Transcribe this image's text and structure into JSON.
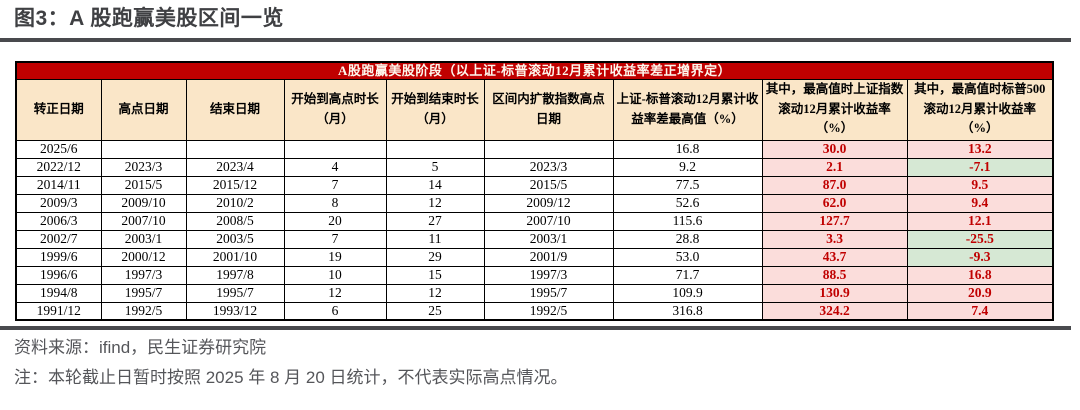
{
  "figure": {
    "title": "图3：A 股跑赢美股区间一览"
  },
  "table": {
    "banner": "A股跑赢美股阶段（以上证-标普滚动12月累计收益率差正增界定）",
    "columns": [
      "转正日期",
      "高点日期",
      "结束日期",
      "开始到高点时长（月）",
      "开始到结束时长（月）",
      "区间内扩散指数高点日期",
      "上证-标普滚动12月累计收益率差最高值（%）",
      "其中，最高值时上证指数滚动12月累计收益率（%）",
      "其中，最高值时标普500滚动12月累计收益率（%）"
    ],
    "rows": [
      [
        "2025/6",
        "",
        "",
        "",
        "",
        "",
        "16.8",
        "30.0",
        "13.2"
      ],
      [
        "2022/12",
        "2023/3",
        "2023/4",
        "4",
        "5",
        "2023/3",
        "9.2",
        "2.1",
        "-7.1"
      ],
      [
        "2014/11",
        "2015/5",
        "2015/12",
        "7",
        "14",
        "2015/5",
        "77.5",
        "87.0",
        "9.5"
      ],
      [
        "2009/3",
        "2009/10",
        "2010/2",
        "8",
        "12",
        "2009/12",
        "52.6",
        "62.0",
        "9.4"
      ],
      [
        "2006/3",
        "2007/10",
        "2008/5",
        "20",
        "27",
        "2007/10",
        "115.6",
        "127.7",
        "12.1"
      ],
      [
        "2002/7",
        "2003/1",
        "2003/5",
        "7",
        "11",
        "2003/1",
        "28.8",
        "3.3",
        "-25.5"
      ],
      [
        "1999/6",
        "2000/12",
        "2001/10",
        "19",
        "29",
        "2001/9",
        "53.0",
        "43.7",
        "-9.3"
      ],
      [
        "1996/6",
        "1997/3",
        "1997/8",
        "10",
        "15",
        "1997/3",
        "71.7",
        "88.5",
        "16.8"
      ],
      [
        "1994/8",
        "1995/7",
        "1995/7",
        "12",
        "12",
        "1995/7",
        "109.9",
        "130.9",
        "20.9"
      ],
      [
        "1991/12",
        "1992/5",
        "1993/12",
        "6",
        "25",
        "1992/5",
        "316.8",
        "324.2",
        "7.4"
      ]
    ],
    "highlight_rule": "last two columns: negative values green, others pink"
  },
  "footer": {
    "source": "资料来源：ifind，民生证券研究院",
    "note": "注：本轮截止日暂时按照 2025 年 8 月 20 日统计，不代表实际高点情况。"
  },
  "colors": {
    "banner_red": "#C00000",
    "banner_text": "#FDF6EC",
    "header_bg": "#FAE6C8",
    "highlight_pink": "#FBDDDB",
    "highlight_green": "#D6E8D4",
    "highlight_value_red": "#C00000",
    "title_gray": "#3F4043",
    "rule_gray": "#494A4E",
    "footer_gray": "#55565A"
  }
}
